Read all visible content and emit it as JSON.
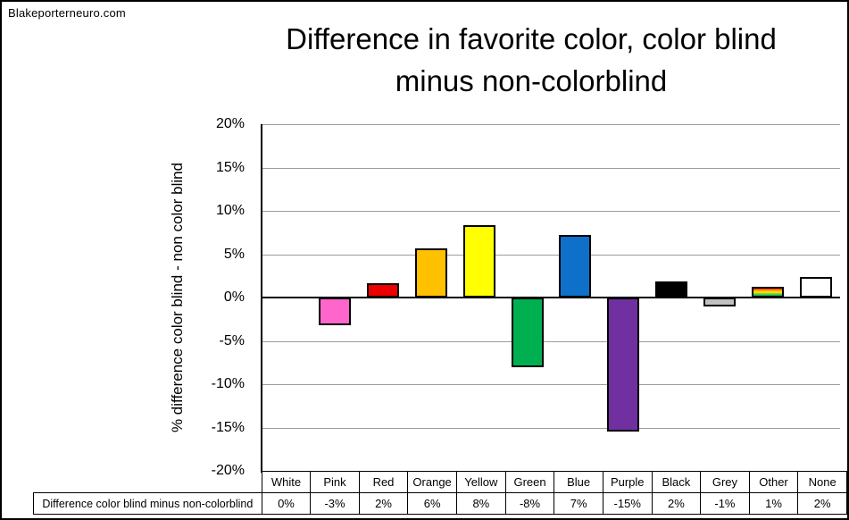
{
  "watermark": "Blakeporterneuro.com",
  "chart_data": {
    "type": "bar",
    "title": "Difference in favorite color, color blind\nminus non-colorblind",
    "ylabel": "% difference color blind - non color blind",
    "xlabel": "",
    "ylim": [
      -20,
      20
    ],
    "ytick_step": 5,
    "ytick_labels": [
      "20%",
      "15%",
      "10%",
      "5%",
      "0%",
      "-5%",
      "-10%",
      "-15%",
      "-20%"
    ],
    "grid": true,
    "legend_position": "none",
    "data_table_shown": true,
    "categories": [
      "White",
      "Pink",
      "Red",
      "Orange",
      "Yellow",
      "Green",
      "Blue",
      "Purple",
      "Black",
      "Grey",
      "Other",
      "None"
    ],
    "series": [
      {
        "name": "Difference color blind minus non-colorblind",
        "values": [
          0,
          -3.2,
          1.6,
          5.7,
          8.3,
          -8,
          7.2,
          -15.5,
          1.9,
          -1,
          1.2,
          2.4
        ],
        "table_labels": [
          "0%",
          "-3%",
          "2%",
          "6%",
          "8%",
          "-8%",
          "7%",
          "-15%",
          "2%",
          "-1%",
          "1%",
          "2%"
        ]
      }
    ],
    "bar_colors": [
      "#FFFFFF",
      "#FF66CC",
      "#EE0000",
      "#FFC000",
      "#FFFF00",
      "#00B050",
      "#0E70C8",
      "#7030A0",
      "#000000",
      "#C0C0C0",
      "rainbow",
      "#FFFFFF"
    ],
    "rainbow_gradient": [
      "#FF2A2A",
      "#FF9900",
      "#FFEE00",
      "#7ACC29",
      "#00B38F"
    ],
    "colors": {
      "bar_border": "#000000",
      "gridline": "#9D9D9D",
      "zero_axis": "#000000",
      "background": "#FFFFFF",
      "frame_border": "#000000"
    }
  }
}
